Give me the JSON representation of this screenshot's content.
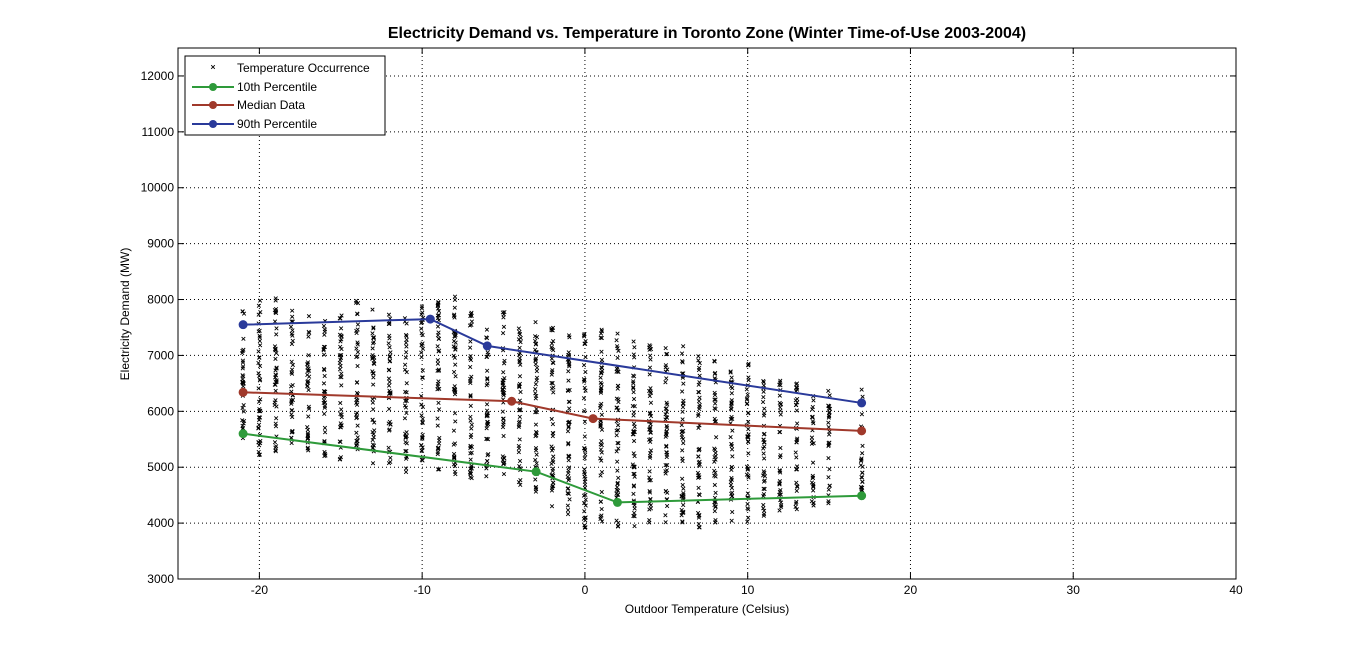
{
  "chart_data": {
    "type": "scatter",
    "title": "Electricity Demand vs. Temperature in Toronto Zone (Winter Time-of-Use 2003-2004)",
    "xlabel": "Outdoor Temperature (Celsius)",
    "ylabel": "Electricity Demand (MW)",
    "xlim": [
      -25,
      40
    ],
    "ylim": [
      3000,
      12500
    ],
    "x_ticks": [
      -20,
      -10,
      0,
      10,
      20,
      30,
      40
    ],
    "y_ticks": [
      3000,
      4000,
      5000,
      6000,
      7000,
      8000,
      9000,
      10000,
      11000,
      12000
    ],
    "grid": true,
    "legend_position": "top-left",
    "scatter_series": {
      "name": "Temperature Occurrence",
      "color": "#000000",
      "marker": "x",
      "columns": [
        {
          "x": -21,
          "min": 5400,
          "max": 7900
        },
        {
          "x": -20,
          "min": 5200,
          "max": 8200
        },
        {
          "x": -19,
          "min": 5200,
          "max": 8100
        },
        {
          "x": -18,
          "min": 5300,
          "max": 7900
        },
        {
          "x": -17,
          "min": 5300,
          "max": 7800
        },
        {
          "x": -16,
          "min": 5200,
          "max": 7700
        },
        {
          "x": -15,
          "min": 5100,
          "max": 7800
        },
        {
          "x": -14,
          "min": 5200,
          "max": 8000
        },
        {
          "x": -13,
          "min": 5000,
          "max": 7900
        },
        {
          "x": -12,
          "min": 5000,
          "max": 7800
        },
        {
          "x": -11,
          "min": 4900,
          "max": 7700
        },
        {
          "x": -10,
          "min": 5100,
          "max": 7900
        },
        {
          "x": -9,
          "min": 4900,
          "max": 8000
        },
        {
          "x": -8,
          "min": 4800,
          "max": 8100
        },
        {
          "x": -7,
          "min": 4800,
          "max": 7800
        },
        {
          "x": -6,
          "min": 4800,
          "max": 7500
        },
        {
          "x": -5,
          "min": 4700,
          "max": 7800
        },
        {
          "x": -4,
          "min": 4600,
          "max": 7500
        },
        {
          "x": -3,
          "min": 4500,
          "max": 7600
        },
        {
          "x": -2,
          "min": 4300,
          "max": 7700
        },
        {
          "x": -1,
          "min": 4100,
          "max": 7500
        },
        {
          "x": 0,
          "min": 3900,
          "max": 7400
        },
        {
          "x": 1,
          "min": 3900,
          "max": 7500
        },
        {
          "x": 2,
          "min": 3900,
          "max": 7400
        },
        {
          "x": 3,
          "min": 3900,
          "max": 7300
        },
        {
          "x": 4,
          "min": 3950,
          "max": 7300
        },
        {
          "x": 5,
          "min": 3950,
          "max": 7200
        },
        {
          "x": 6,
          "min": 3950,
          "max": 7200
        },
        {
          "x": 7,
          "min": 3900,
          "max": 7100
        },
        {
          "x": 8,
          "min": 3900,
          "max": 7000
        },
        {
          "x": 9,
          "min": 3950,
          "max": 6950
        },
        {
          "x": 10,
          "min": 4000,
          "max": 6900
        },
        {
          "x": 11,
          "min": 4100,
          "max": 6700
        },
        {
          "x": 12,
          "min": 4200,
          "max": 6600
        },
        {
          "x": 13,
          "min": 4200,
          "max": 6500
        },
        {
          "x": 14,
          "min": 4300,
          "max": 6400
        },
        {
          "x": 15,
          "min": 4300,
          "max": 6400
        },
        {
          "x": 17,
          "min": 4400,
          "max": 6400
        }
      ]
    },
    "series": [
      {
        "name": "10th Percentile",
        "color": "#2e9a3a",
        "x": [
          -21,
          -3,
          2,
          17
        ],
        "values": [
          5600,
          4920,
          4370,
          4490
        ]
      },
      {
        "name": "Median Data",
        "color": "#a0392b",
        "x": [
          -21,
          -4.5,
          0.5,
          17
        ],
        "values": [
          6340,
          6180,
          5870,
          5650
        ]
      },
      {
        "name": "90th Percentile",
        "color": "#2a3a9a",
        "x": [
          -21,
          -9.5,
          -6,
          17
        ],
        "values": [
          7550,
          7650,
          7170,
          6150
        ]
      }
    ]
  }
}
